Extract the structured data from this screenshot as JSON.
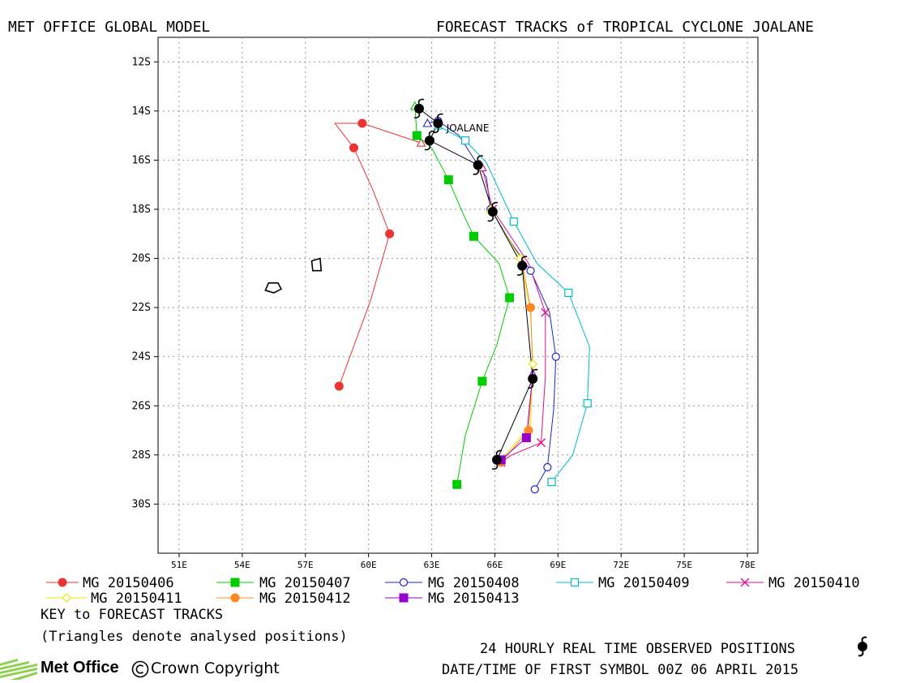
{
  "header": {
    "left": "MET OFFICE GLOBAL MODEL",
    "right": "FORECAST TRACKS of TROPICAL CYCLONE JOALANE"
  },
  "chart_data": {
    "type": "scatter",
    "title": "FORECAST TRACKS of TROPICAL CYCLONE JOALANE",
    "x_ticks": [
      "51E",
      "54E",
      "57E",
      "60E",
      "63E",
      "66E",
      "69E",
      "72E",
      "75E",
      "78E"
    ],
    "y_ticks": [
      "12S",
      "14S",
      "16S",
      "18S",
      "20S",
      "22S",
      "24S",
      "26S",
      "28S",
      "30S"
    ],
    "xlim": [
      50,
      78.5
    ],
    "ylim": [
      -32,
      -11
    ],
    "grid": true,
    "storm_label": {
      "text": "JOALANE",
      "lon": 63.7,
      "lat": -14.7
    },
    "islands": [
      [
        [
          55.25,
          -21.0
        ],
        [
          55.7,
          -21.0
        ],
        [
          55.85,
          -21.25
        ],
        [
          55.5,
          -21.4
        ],
        [
          55.1,
          -21.3
        ]
      ],
      [
        [
          57.3,
          -20.1
        ],
        [
          57.7,
          -20.0
        ],
        [
          57.75,
          -20.5
        ],
        [
          57.35,
          -20.5
        ]
      ]
    ],
    "series": [
      {
        "name": "MG 20150406",
        "color": "#ee3333",
        "marker": "filled-circle",
        "x": [
          62.5,
          59.7,
          58.4,
          59.3,
          60.2,
          61.0,
          60.1,
          58.6
        ],
        "y": [
          -15.3,
          -14.5,
          -14.5,
          -15.5,
          -17.2,
          -19.0,
          -21.7,
          -25.2
        ]
      },
      {
        "name": "MG 20150407",
        "color": "#00cc00",
        "marker": "filled-square",
        "x": [
          62.2,
          62.3,
          63.0,
          63.8,
          64.5,
          65.0,
          66.2,
          66.7,
          66.1,
          65.4,
          64.6,
          64.2
        ],
        "y": [
          -13.8,
          -15.0,
          -15.5,
          -16.8,
          -18.2,
          -19.1,
          -20.2,
          -21.6,
          -23.5,
          -25.0,
          -27.2,
          -29.2
        ]
      },
      {
        "name": "MG 20150408",
        "color": "#2222cc",
        "marker": "open-circle",
        "x": [
          62.8,
          63.3,
          64.3,
          65.2,
          65.6,
          65.8,
          66.8,
          67.7,
          68.6,
          68.9,
          68.8,
          68.5,
          67.9
        ],
        "y": [
          -14.5,
          -14.4,
          -15.0,
          -16.2,
          -16.7,
          -18.0,
          -19.4,
          -20.5,
          -22.2,
          -24.0,
          -26.1,
          -28.5,
          -29.4
        ]
      },
      {
        "name": "MG 20150409",
        "color": "#00bbcc",
        "marker": "open-square",
        "x": [
          63.3,
          64.6,
          65.6,
          66.9,
          68.0,
          69.5,
          70.5,
          70.4,
          69.7,
          68.7
        ],
        "y": [
          -14.6,
          -15.2,
          -16.1,
          -18.5,
          -20.2,
          -21.4,
          -23.6,
          -25.9,
          -28.0,
          -29.1
        ]
      },
      {
        "name": "MG 20150410",
        "color": "#dd1188",
        "marker": "cross",
        "x": [
          65.4,
          65.9,
          67.6,
          68.4,
          68.4,
          68.2,
          66.8,
          66.3
        ],
        "y": [
          -16.3,
          -18.0,
          -20.2,
          -22.2,
          -24.8,
          -27.5,
          -28.0,
          -28.3
        ]
      },
      {
        "name": "MG 20150411",
        "color": "#e8e800",
        "marker": "open-diamond",
        "x": [
          65.8,
          67.2,
          67.7,
          67.8,
          67.7,
          66.3
        ],
        "y": [
          -18.0,
          -20.0,
          -22.2,
          -24.3,
          -26.8,
          -28.2
        ]
      },
      {
        "name": "MG 20150412",
        "color": "#ff8822",
        "marker": "filled-circle",
        "x": [
          67.3,
          67.7,
          67.8,
          67.6,
          66.3
        ],
        "y": [
          -20.2,
          -22.0,
          -24.6,
          -27.0,
          -28.3
        ]
      },
      {
        "name": "MG 20150413",
        "color": "#9900cc",
        "marker": "filled-square",
        "x": [
          67.8,
          67.5,
          66.3
        ],
        "y": [
          -24.7,
          -27.3,
          -28.2
        ]
      },
      {
        "name": "observed",
        "color": "#000000",
        "marker": "storm",
        "x": [
          62.4,
          63.3,
          62.9,
          65.2,
          65.9,
          67.3,
          67.8,
          66.1
        ],
        "y": [
          -13.9,
          -14.5,
          -15.2,
          -16.2,
          -18.1,
          -20.3,
          -24.9,
          -28.2
        ]
      }
    ]
  },
  "legend": {
    "row1": [
      "MG 20150406",
      "MG 20150407",
      "MG 20150408",
      "MG 20150409",
      "MG 20150410"
    ],
    "row2": [
      "MG 20150411",
      "MG 20150412",
      "MG 20150413"
    ],
    "key_title": "KEY to FORECAST TRACKS",
    "note": "(Triangles denote analysed positions)"
  },
  "footer": {
    "observed_note": "24 HOURLY REAL TIME OBSERVED POSITIONS",
    "first_symbol": "DATE/TIME OF FIRST SYMBOL 00Z 06 APRIL 2015",
    "logo": "Met Office",
    "copyright": "Crown Copyright"
  }
}
